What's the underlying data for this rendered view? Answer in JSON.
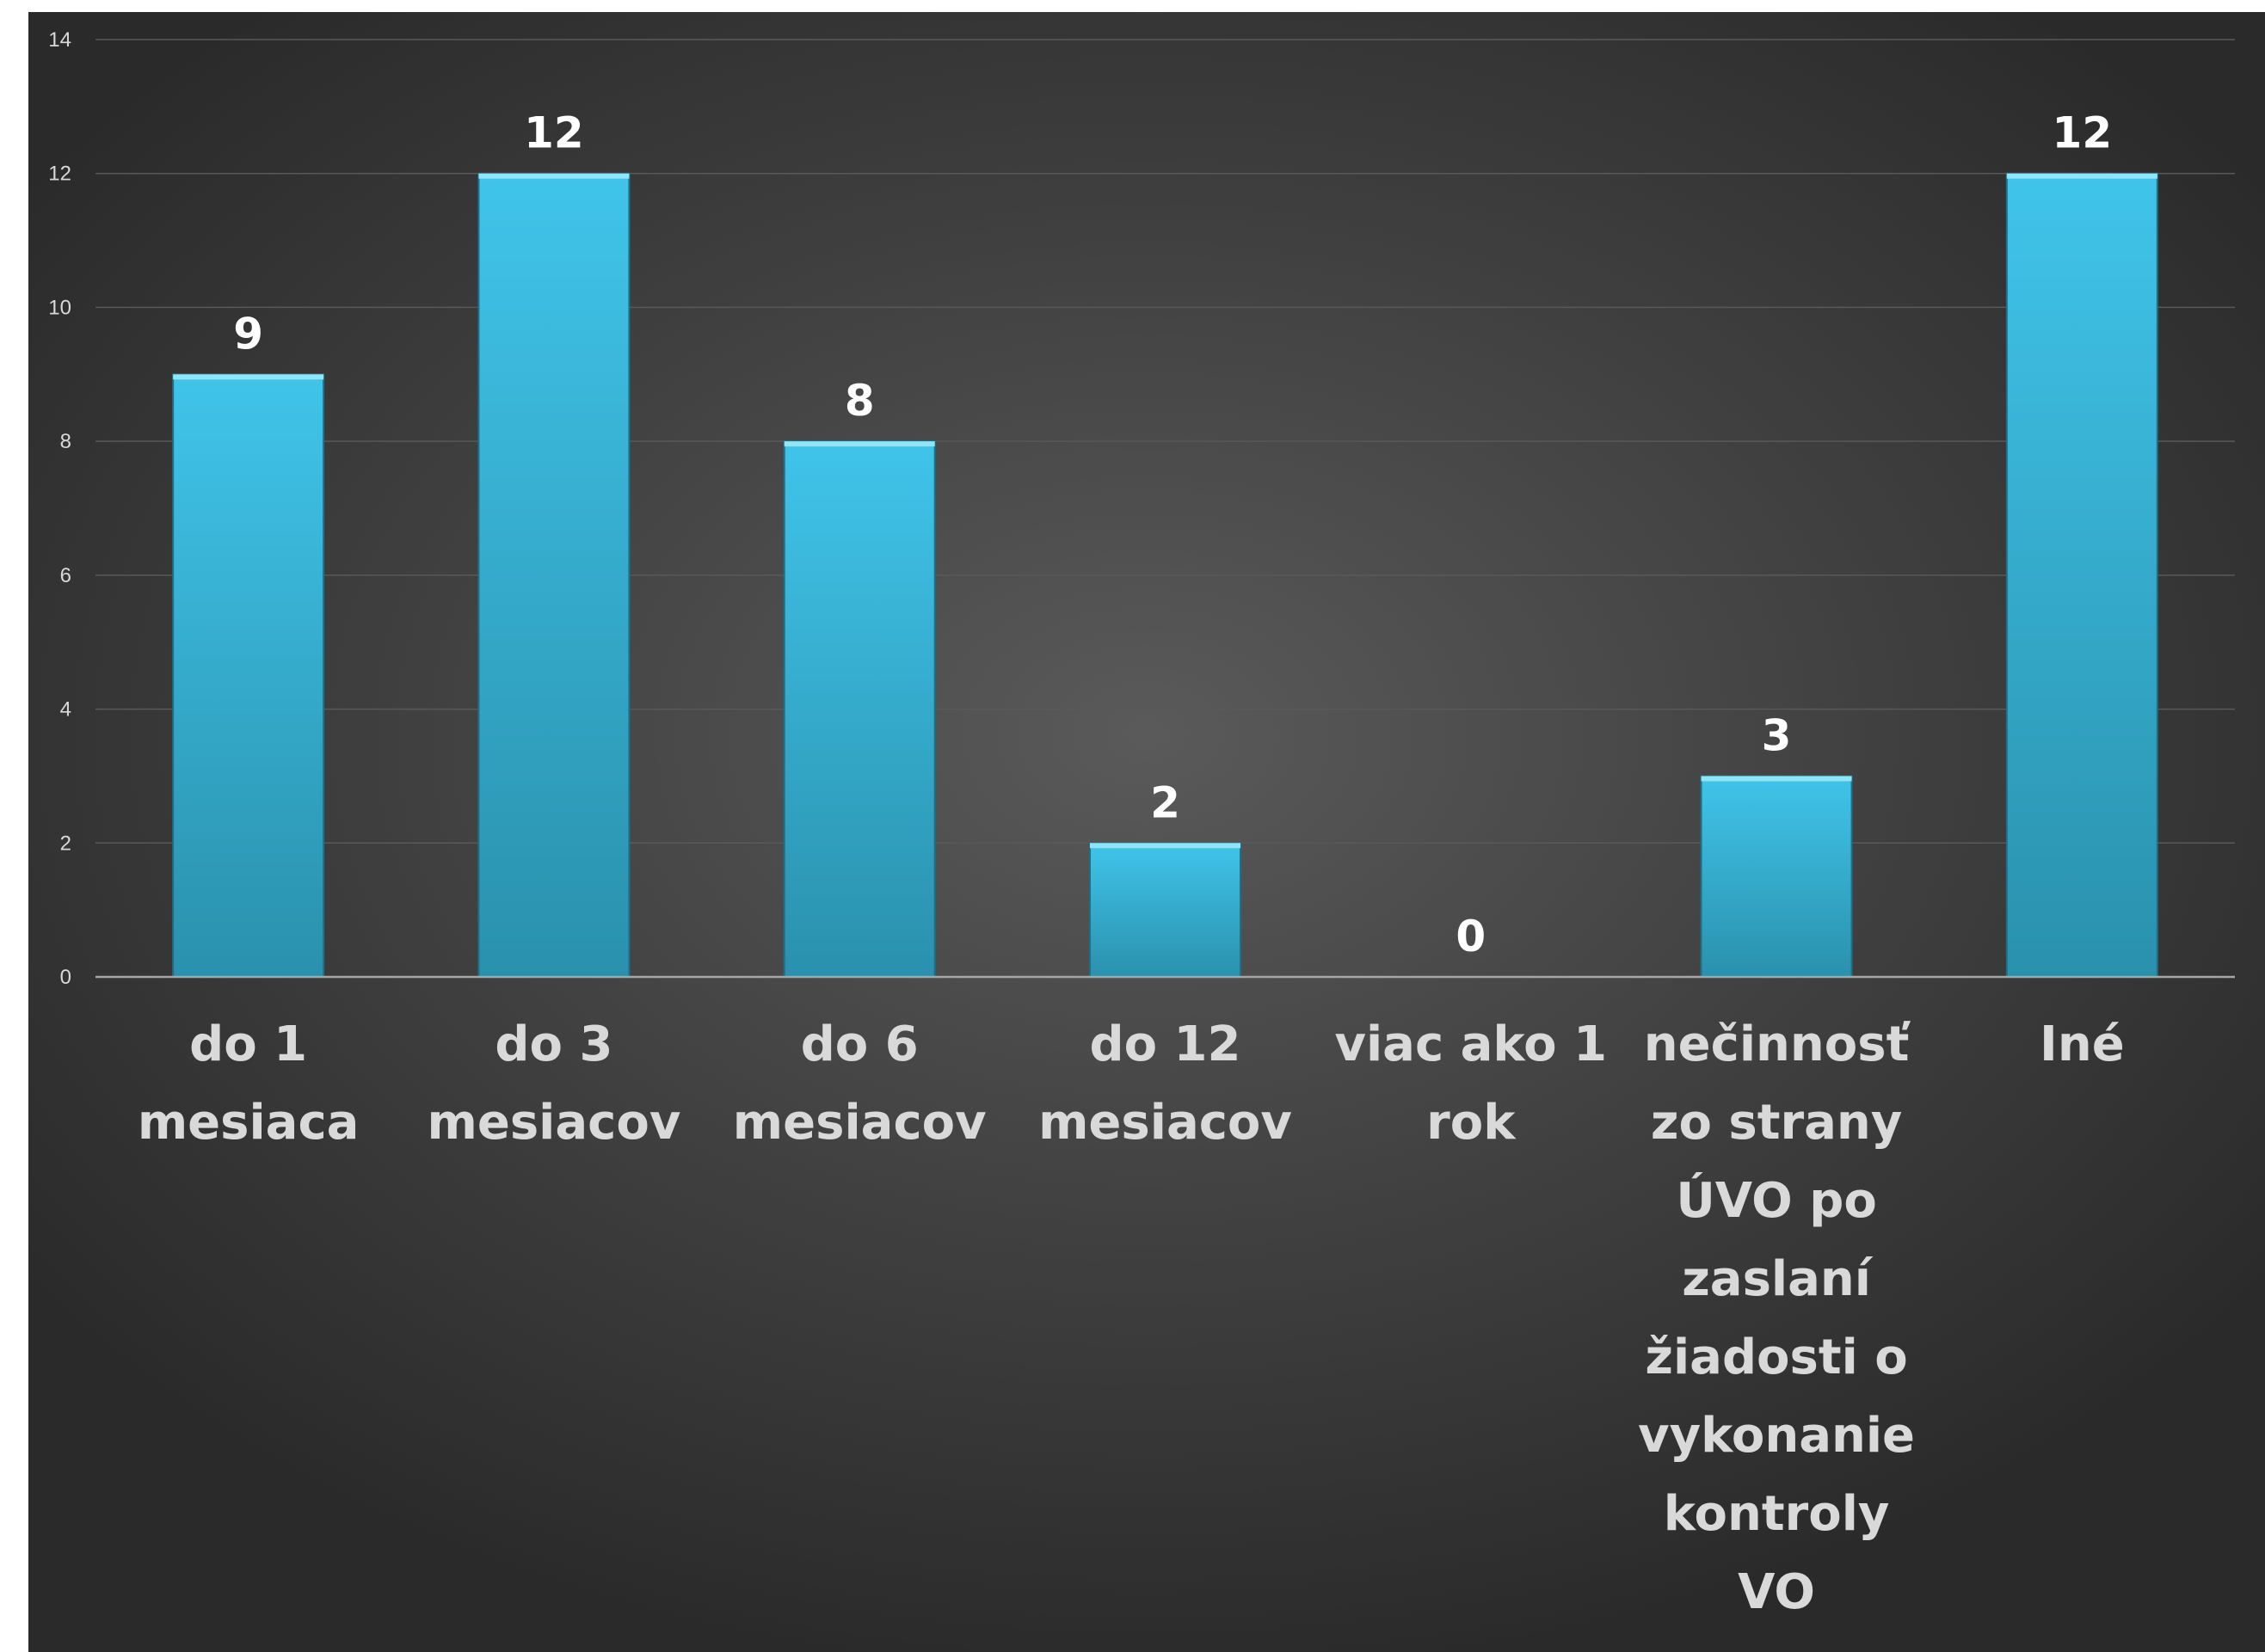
{
  "chart_data": {
    "type": "bar",
    "title": "",
    "xlabel": "",
    "ylabel": "",
    "categories": [
      [
        "do 1",
        "mesiaca"
      ],
      [
        "do 3",
        "mesiacov"
      ],
      [
        "do 6",
        "mesiacov"
      ],
      [
        "do 12",
        "mesiacov"
      ],
      [
        "viac ako 1",
        "rok"
      ],
      [
        "nečinnosť",
        "zo strany",
        "ÚVO po",
        "zaslaní",
        "žiadosti o",
        "vykonanie",
        "kontroly",
        "VO"
      ],
      [
        "Iné"
      ]
    ],
    "values": [
      9,
      12,
      8,
      2,
      0,
      3,
      12
    ],
    "data_labels": [
      "9",
      "12",
      "8",
      "2",
      "0",
      "3",
      "12"
    ],
    "ylim": [
      0,
      14
    ],
    "yticks": [
      "0",
      "2",
      "4",
      "6",
      "8",
      "10",
      "12",
      "14"
    ],
    "grid": true,
    "legend": "none",
    "colors": {
      "bar_top": "#40c4ea",
      "bar_bottom": "#2a91ad",
      "bar_cap": "#8fe6fb",
      "background_center": "#5a5a5a",
      "background_edge": "#2a2a2a",
      "gridline": "#595959",
      "axis": "#a6a6a6",
      "data_label": "#ffffff",
      "category_label": "#d9d9d9"
    }
  }
}
